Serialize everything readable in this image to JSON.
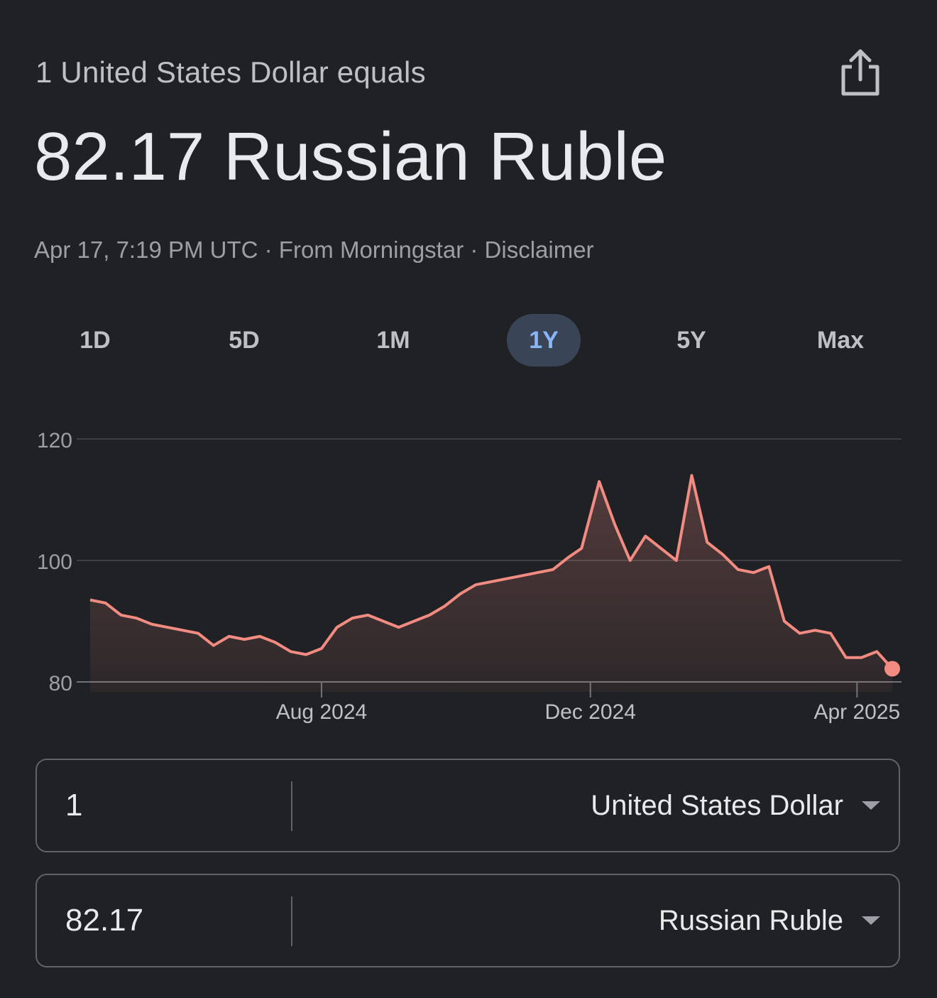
{
  "header": {
    "subtitle": "1 United States Dollar equals",
    "headline": "82.17 Russian Ruble",
    "timestamp": "Apr 17, 7:19 PM UTC",
    "separator": "·",
    "source": "From Morningstar",
    "disclaimer": "Disclaimer"
  },
  "share_icon": "share-icon",
  "tabs": [
    {
      "label": "1D",
      "active": false
    },
    {
      "label": "5D",
      "active": false
    },
    {
      "label": "1M",
      "active": false
    },
    {
      "label": "1Y",
      "active": true
    },
    {
      "label": "5Y",
      "active": false
    },
    {
      "label": "Max",
      "active": false
    }
  ],
  "colors": {
    "background": "#202124",
    "line": "#f28b82",
    "active_tab_bg": "#394457",
    "active_tab_text": "#8ab4f8",
    "grid": "#5f6368"
  },
  "chart_data": {
    "type": "area",
    "title": "",
    "xlabel": "",
    "ylabel": "",
    "ylim": [
      80,
      120
    ],
    "yticks": [
      "120",
      "100",
      "80"
    ],
    "xtick_labels": [
      "Aug 2024",
      "Dec 2024",
      "Apr 2025"
    ],
    "grid": true,
    "series": [
      {
        "x": [
          "2024-04-18",
          "2024-04-25",
          "2024-05-02",
          "2024-05-09",
          "2024-05-16",
          "2024-05-23",
          "2024-05-30",
          "2024-06-06",
          "2024-06-13",
          "2024-06-20",
          "2024-06-27",
          "2024-07-04",
          "2024-07-11",
          "2024-07-18",
          "2024-07-25",
          "2024-08-01",
          "2024-08-08",
          "2024-08-15",
          "2024-08-22",
          "2024-08-29",
          "2024-09-05",
          "2024-09-12",
          "2024-09-19",
          "2024-09-26",
          "2024-10-03",
          "2024-10-10",
          "2024-10-17",
          "2024-10-24",
          "2024-10-31",
          "2024-11-07",
          "2024-11-14",
          "2024-11-21",
          "2024-11-27",
          "2024-12-05",
          "2024-12-12",
          "2024-12-19",
          "2024-12-26",
          "2025-01-02",
          "2025-01-09",
          "2025-01-16",
          "2025-01-23",
          "2025-01-30",
          "2025-02-06",
          "2025-02-13",
          "2025-02-20",
          "2025-02-27",
          "2025-03-06",
          "2025-03-13",
          "2025-03-20",
          "2025-03-27",
          "2025-04-03",
          "2025-04-10",
          "2025-04-17"
        ],
        "values": [
          93.5,
          93.0,
          91.0,
          90.5,
          89.5,
          89.0,
          88.5,
          88.0,
          86.0,
          87.5,
          87.0,
          87.5,
          86.5,
          85.0,
          84.5,
          85.5,
          89.0,
          90.5,
          91.0,
          90.0,
          89.0,
          90.0,
          91.0,
          92.5,
          94.5,
          96.0,
          96.5,
          97.0,
          97.5,
          98.0,
          98.5,
          100.5,
          102.0,
          113.0,
          106.0,
          100.0,
          104.0,
          102.0,
          100.0,
          114.0,
          103.0,
          101.0,
          98.5,
          98.0,
          99.0,
          90.0,
          88.0,
          88.5,
          88.0,
          84.0,
          84.0,
          85.0,
          82.17
        ]
      }
    ]
  },
  "converter": {
    "from": {
      "amount": "1",
      "currency": "United States Dollar"
    },
    "to": {
      "amount": "82.17",
      "currency": "Russian Ruble"
    }
  }
}
